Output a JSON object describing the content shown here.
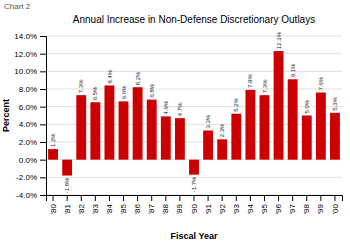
{
  "chart_data": {
    "type": "bar",
    "title": "Annual Increase in Non-Defense Discretionary Outlays",
    "annotations": [
      "Chart 2"
    ],
    "xlabel": "Fiscal Year",
    "ylabel": "Percent",
    "categories": [
      "'80",
      "'81",
      "'82",
      "'83",
      "'84",
      "'85",
      "'86",
      "'87",
      "'88",
      "'89",
      "'90",
      "'91",
      "'92",
      "'93",
      "'94",
      "'95",
      "'96",
      "'97",
      "'98",
      "'99",
      "'00"
    ],
    "values": [
      1.2,
      -1.8,
      7.3,
      6.5,
      8.4,
      6.6,
      8.2,
      6.8,
      4.9,
      4.7,
      -1.7,
      3.3,
      2.3,
      5.2,
      7.9,
      7.3,
      12.3,
      9.1,
      5.0,
      7.6,
      5.3
    ],
    "value_labels": [
      "1.2%",
      "-1.8%",
      "7.3%",
      "6.5%",
      "8.4%",
      "6.6%",
      "8.2%",
      "6.8%",
      "4.9%",
      "4.7%",
      "-1.7%",
      "3.3%",
      "2.3%",
      "5.2%",
      "7.9%",
      "7.3%",
      "12.3%",
      "9.1%",
      "5.0%",
      "7.6%",
      "5.3%"
    ],
    "data_labels": true,
    "color": "#cc0000",
    "ylim": [
      -4.0,
      14.0
    ],
    "yticks": [
      {
        "value": -4.0,
        "label": "-4.0%"
      },
      {
        "value": -2.0,
        "label": "-2.0%"
      },
      {
        "value": 0.0,
        "label": "0.0%"
      },
      {
        "value": 2.0,
        "label": "2.0%"
      },
      {
        "value": 4.0,
        "label": "4.0%"
      },
      {
        "value": 6.0,
        "label": "6.0%"
      },
      {
        "value": 8.0,
        "label": "8.0%"
      },
      {
        "value": 10.0,
        "label": "10.0%"
      },
      {
        "value": 12.0,
        "label": "12.0%"
      },
      {
        "value": 14.0,
        "label": "14.0%"
      }
    ],
    "grid": true
  }
}
